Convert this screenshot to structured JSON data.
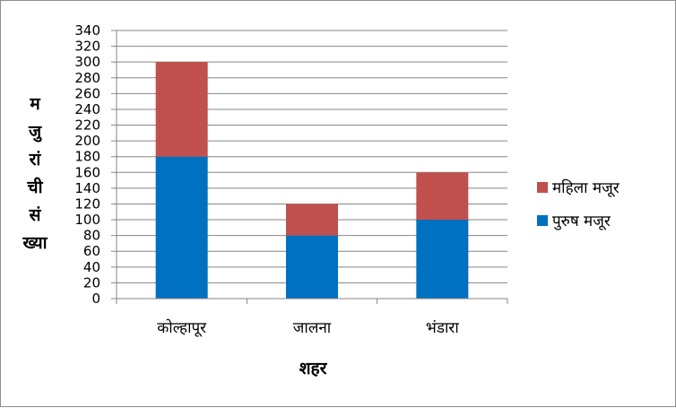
{
  "chart_data": {
    "type": "bar",
    "stacked": true,
    "categories": [
      "कोल्हापूर",
      "जालना",
      "भंडारा"
    ],
    "series": [
      {
        "name": "पुरुष मजूर",
        "values": [
          180,
          80,
          100
        ],
        "color": "#0070C0"
      },
      {
        "name": "महिला मजूर",
        "values": [
          120,
          40,
          60
        ],
        "color": "#C0504D"
      }
    ],
    "xlabel": "शहर",
    "ylabel_lines": [
      "म",
      "जु",
      "रां",
      "ची",
      "सं",
      "ख्या"
    ],
    "ylim": [
      0,
      340
    ],
    "yticks": [
      0,
      20,
      40,
      60,
      80,
      100,
      120,
      140,
      160,
      180,
      200,
      220,
      240,
      260,
      280,
      300,
      320,
      340
    ],
    "grid": true,
    "legend_position": "right",
    "gridline_color": "#868686"
  }
}
